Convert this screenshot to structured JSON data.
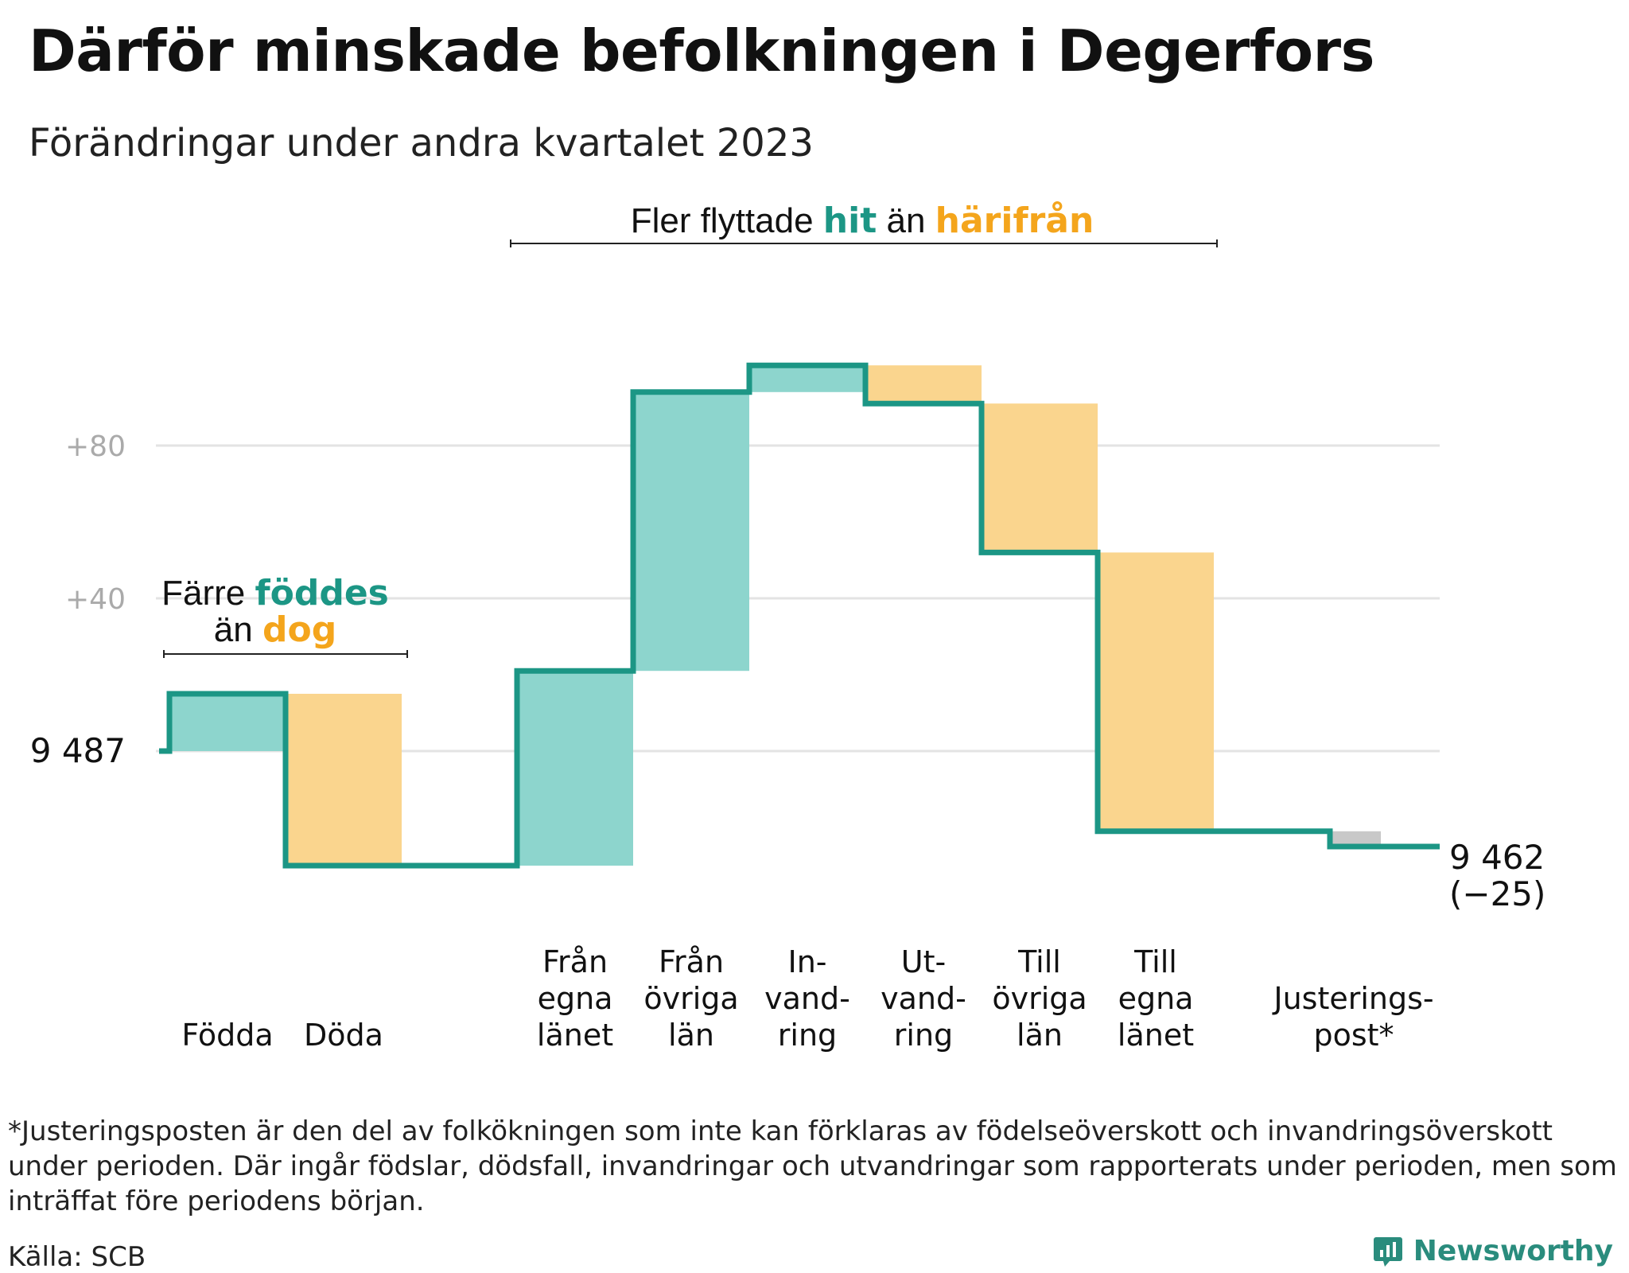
{
  "title": "Därför minskade befolkningen i Degerfors",
  "subtitle": "Förändringar under andra kvartalet 2023",
  "chart_data": {
    "type": "waterfall",
    "start": {
      "value": 9487,
      "label": "9  487"
    },
    "end": {
      "value": 9462,
      "label": "9 462",
      "change": "(−25)"
    },
    "y_ticks": [
      {
        "value": 40,
        "label": "+40"
      },
      {
        "value": 80,
        "label": "+80"
      }
    ],
    "steps": [
      {
        "category": [
          "Födda"
        ],
        "change": 15,
        "kind": "in"
      },
      {
        "category": [
          "Döda"
        ],
        "change": -45,
        "kind": "out"
      },
      {
        "category": [
          "Från",
          "egna",
          "länet"
        ],
        "change": 51,
        "kind": "in"
      },
      {
        "category": [
          "Från",
          "övriga",
          "län"
        ],
        "change": 73,
        "kind": "in"
      },
      {
        "category": [
          "In-",
          "vand-",
          "ring"
        ],
        "change": 7,
        "kind": "in"
      },
      {
        "category": [
          "Ut-",
          "vand-",
          "ring"
        ],
        "change": -10,
        "kind": "out"
      },
      {
        "category": [
          "Till",
          "övriga",
          "län"
        ],
        "change": -39,
        "kind": "out"
      },
      {
        "category": [
          "Till",
          "egna",
          "länet"
        ],
        "change": -73,
        "kind": "out"
      },
      {
        "category": [
          "Justerings-",
          "post*"
        ],
        "change": -4,
        "kind": "adjust"
      }
    ],
    "annotations": [
      {
        "parts": [
          {
            "text": "Färre ",
            "style": "plain"
          },
          {
            "text": "föddes",
            "style": "in"
          }
        ],
        "parts2": [
          {
            "text": "än ",
            "style": "plain"
          },
          {
            "text": "dog",
            "style": "out"
          }
        ]
      },
      {
        "parts": [
          {
            "text": "Fler flyttade ",
            "style": "plain"
          },
          {
            "text": "hit",
            "style": "in"
          },
          {
            "text": " än ",
            "style": "plain"
          },
          {
            "text": "härifrån",
            "style": "out"
          }
        ]
      }
    ],
    "colors": {
      "in_fill": "#8dd5cd",
      "out_fill": "#fad58e",
      "adjust_fill": "#c8c8c8",
      "line": "#1c9685",
      "in_text": "#1c9685",
      "out_text": "#f4a51c",
      "grid": "#e3e3e3"
    }
  },
  "footnote": "*Justeringsposten är den del av folkökningen som inte kan förklaras av födelseöverskott och invandringsöverskott under perioden. Där ingår födslar, dödsfall, invandringar och utvandringar som rapporterats under perioden, men som inträffat före periodens början.",
  "source": "Källa: SCB",
  "brand": "Newsworthy"
}
